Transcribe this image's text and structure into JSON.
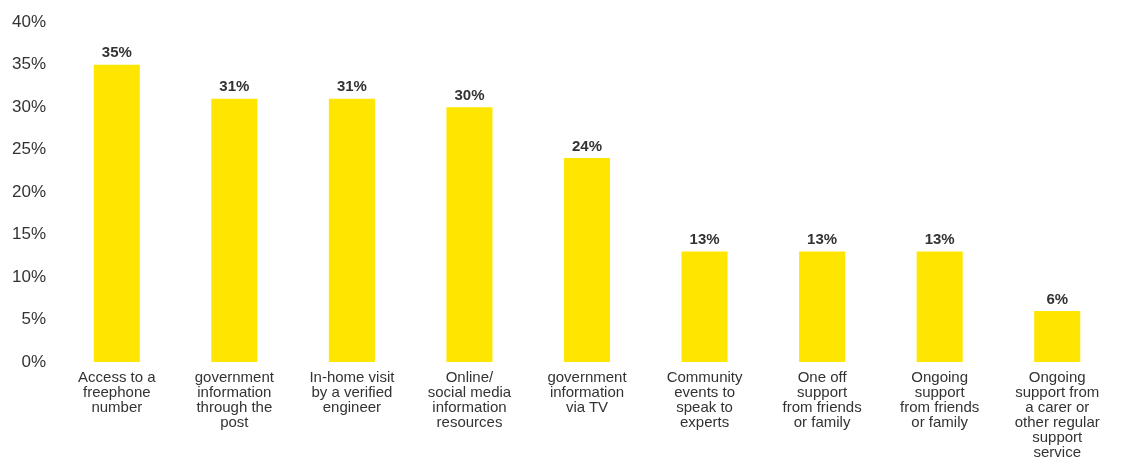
{
  "chart_data": {
    "type": "bar",
    "categories": [
      "Access to a\nfreephone\nnumber",
      "government\ninformation\nthrough the\npost",
      "In-home visit\nby a verified\nengineer",
      "Online/\nsocial media\ninformation\nresources",
      "government\ninformation\nvia TV",
      "Community\nevents to\nspeak to\nexperts",
      "One off\nsupport\nfrom friends\nor family",
      "Ongoing\nsupport\nfrom friends\nor family",
      "Ongoing\nsupport from\na carer or\nother regular\nsupport\nservice"
    ],
    "values": [
      35,
      31,
      31,
      30,
      24,
      13,
      13,
      13,
      6
    ],
    "value_labels": [
      "35%",
      "31%",
      "31%",
      "30%",
      "24%",
      "13%",
      "13%",
      "13%",
      "6%"
    ],
    "color": "#ffe600",
    "ylim": [
      0,
      40
    ],
    "yticks": [
      {
        "value": 0,
        "label": "0%"
      },
      {
        "value": 5,
        "label": "5%"
      },
      {
        "value": 10,
        "label": "10%"
      },
      {
        "value": 15,
        "label": "15%"
      },
      {
        "value": 20,
        "label": "20%"
      },
      {
        "value": 25,
        "label": "25%"
      },
      {
        "value": 30,
        "label": "30%"
      },
      {
        "value": 35,
        "label": "35%"
      },
      {
        "value": 40,
        "label": "40%"
      }
    ],
    "grid": false,
    "legend": false
  }
}
